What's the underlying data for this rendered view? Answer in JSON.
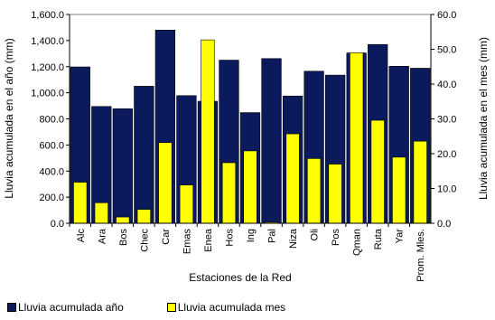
{
  "chart_data": {
    "type": "bar",
    "categories": [
      "Alc",
      "Ara",
      "Bos",
      "Chec",
      "Car",
      "Emas",
      "Enea",
      "Hos",
      "Ing",
      "Pal",
      "Niza",
      "Oli",
      "Pos",
      "Qman",
      "Ruta",
      "Yar",
      "Prom. Mles."
    ],
    "series": [
      {
        "name": "Lluvia acumulada año",
        "axis": "left",
        "color": "#0a1a5c",
        "values": [
          1198,
          895,
          878,
          1050,
          1480,
          978,
          935,
          1250,
          848,
          1262,
          975,
          1165,
          1135,
          1305,
          1370,
          1203,
          1188
        ]
      },
      {
        "name": "Lluvia acumulada mes",
        "axis": "right",
        "color": "#ffff00",
        "values": [
          11.8,
          5.9,
          1.8,
          4.0,
          23.2,
          11.0,
          52.7,
          17.4,
          20.8,
          0.3,
          25.7,
          18.6,
          17.0,
          49.0,
          29.6,
          19.0,
          23.6
        ]
      }
    ],
    "xlabel": "Estaciones de la Red",
    "ylabel": "Lluvia acumulada  en el año (mm)",
    "y2label": "Lluvia acumulada  en el mes (mm)",
    "ylim": [
      0,
      1600
    ],
    "y2lim": [
      0,
      60
    ],
    "yticks": [
      "0.0",
      "200.0",
      "400.0",
      "600.0",
      "800.0",
      "1,000.0",
      "1,200.0",
      "1,400.0",
      "1,600.0"
    ],
    "y2ticks": [
      "0.0",
      "10.0",
      "20.0",
      "30.0",
      "40.0",
      "50.0",
      "60.0"
    ],
    "grid": false,
    "legend_position": "bottom-left"
  }
}
